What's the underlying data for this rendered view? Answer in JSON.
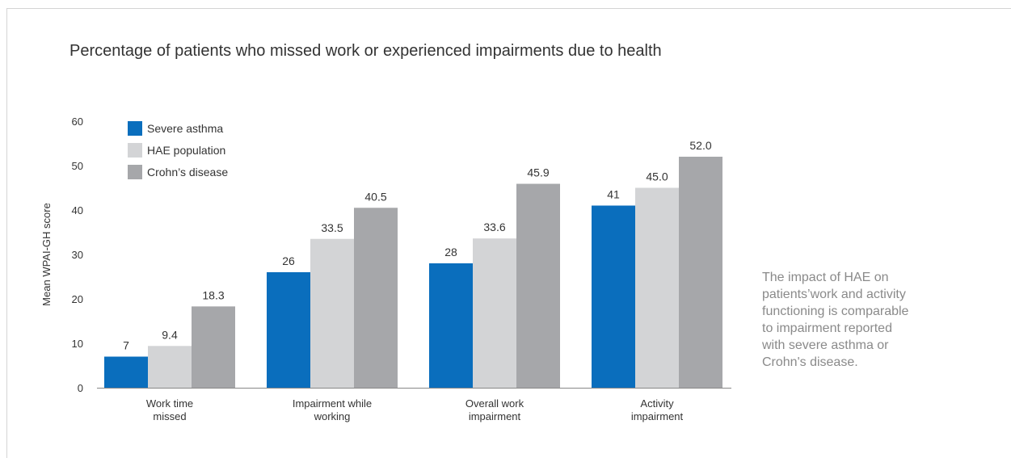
{
  "chart_data": {
    "type": "bar",
    "title": "Percentage of patients who missed work or experienced impairments due to health",
    "ylabel": "Mean WPAI-GH score",
    "xlabel": "",
    "ylim": [
      0,
      60
    ],
    "yticks": [
      0,
      10,
      20,
      30,
      40,
      50,
      60
    ],
    "grid": false,
    "legend_position": "top-left",
    "categories": [
      [
        "Work time",
        "missed"
      ],
      [
        "Impairment while",
        "working"
      ],
      [
        "Overall work",
        "impairment"
      ],
      [
        "Activity",
        "impairment"
      ]
    ],
    "series": [
      {
        "name": "Severe asthma",
        "color": "#0a6ebd",
        "values": [
          7,
          26,
          28,
          41
        ],
        "labels": [
          "7",
          "26",
          "28",
          "41"
        ]
      },
      {
        "name": "HAE population",
        "color": "#d3d4d6",
        "values": [
          9.4,
          33.5,
          33.6,
          45.0
        ],
        "labels": [
          "9.4",
          "33.5",
          "33.6",
          "45.0"
        ]
      },
      {
        "name": "Crohn’s disease",
        "color": "#a6a7aa",
        "values": [
          18.3,
          40.5,
          45.9,
          52.0
        ],
        "labels": [
          "18.3",
          "40.5",
          "45.9",
          "52.0"
        ]
      }
    ]
  },
  "side_note": "The impact of HAE on\npatients’work and activity\nfunctioning is comparable\nto impairment reported\nwith severe asthma or\nCrohn's disease."
}
